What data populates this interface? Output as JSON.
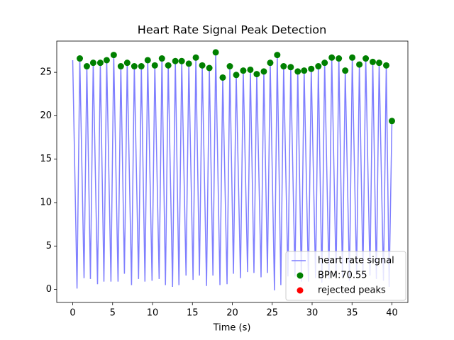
{
  "chart_data": {
    "type": "line",
    "title": "Heart Rate Signal Peak Detection",
    "xlabel": "Time (s)",
    "xlim": [
      -2,
      42
    ],
    "ylim": [
      -1.5,
      28.6
    ],
    "xticks": [
      0,
      5,
      10,
      15,
      20,
      25,
      30,
      35,
      40
    ],
    "yticks": [
      0,
      5,
      10,
      15,
      20,
      25
    ],
    "grid": false,
    "legend": "lower right",
    "series": [
      {
        "name": "heart rate signal",
        "type": "line",
        "color": "#7f7fff",
        "x": [
          0,
          0.54,
          0.89,
          1.42,
          1.77,
          2.22,
          2.57,
          3.11,
          3.46,
          3.91,
          4.26,
          4.79,
          5.14,
          5.68,
          6.03,
          6.48,
          6.83,
          7.37,
          7.72,
          8.25,
          8.6,
          9.05,
          9.4,
          9.94,
          10.29,
          10.83,
          11.18,
          11.62,
          11.97,
          12.51,
          12.86,
          13.31,
          13.66,
          14.2,
          14.55,
          15.08,
          15.43,
          15.88,
          16.23,
          16.77,
          17.12,
          17.57,
          17.92,
          18.45,
          18.8,
          19.34,
          19.69,
          20.14,
          20.49,
          21.02,
          21.37,
          21.91,
          22.26,
          22.71,
          23.06,
          23.6,
          23.95,
          24.4,
          24.75,
          25.28,
          25.63,
          26.08,
          26.43,
          26.97,
          27.32,
          27.85,
          28.2,
          28.65,
          29.0,
          29.54,
          29.89,
          30.43,
          30.78,
          31.22,
          31.57,
          32.11,
          32.46,
          33.0,
          33.35,
          33.8,
          34.15,
          34.68,
          35.03,
          35.57,
          35.92,
          36.37,
          36.72,
          37.25,
          37.6,
          38.05,
          38.4,
          38.94,
          39.29,
          39.65,
          40.0
        ],
        "y": [
          26.4,
          0.1,
          26.6,
          1.3,
          25.7,
          1.2,
          26.1,
          0.6,
          26.1,
          0.9,
          26.4,
          0.9,
          27.0,
          0.9,
          25.7,
          1.8,
          26.1,
          0.5,
          25.7,
          1.2,
          25.7,
          0.9,
          26.4,
          1.0,
          25.8,
          1.2,
          26.6,
          0.5,
          25.8,
          0.3,
          26.3,
          0.5,
          26.3,
          1.6,
          26.0,
          1.1,
          26.7,
          1.6,
          25.8,
          0.4,
          25.5,
          1.6,
          27.3,
          0.5,
          24.4,
          0.6,
          25.7,
          1.8,
          24.7,
          1.3,
          25.2,
          2.0,
          25.3,
          1.9,
          24.8,
          1.4,
          25.1,
          1.9,
          26.1,
          -0.1,
          27.0,
          0.5,
          25.7,
          1.5,
          25.6,
          1.5,
          25.1,
          0.9,
          25.2,
          0.9,
          25.4,
          1.3,
          25.7,
          0.8,
          26.1,
          1.2,
          26.7,
          1.5,
          26.6,
          1.4,
          25.2,
          1.0,
          26.7,
          1.7,
          25.9,
          1.6,
          26.6,
          1.6,
          26.2,
          1.2,
          26.1,
          1.0,
          25.8,
          0.3,
          19.4
        ]
      },
      {
        "name": "BPM:70.55",
        "type": "scatter",
        "color": "#008000",
        "x": [
          0.89,
          1.77,
          2.57,
          3.46,
          4.26,
          5.14,
          6.03,
          6.83,
          7.72,
          8.6,
          9.4,
          10.29,
          11.18,
          11.97,
          12.86,
          13.66,
          14.55,
          15.43,
          16.23,
          17.12,
          17.92,
          18.8,
          19.69,
          20.49,
          21.37,
          22.26,
          23.06,
          23.95,
          24.75,
          25.63,
          26.43,
          27.32,
          28.2,
          29.0,
          29.89,
          30.78,
          31.57,
          32.46,
          33.35,
          34.15,
          35.03,
          35.92,
          36.72,
          37.6,
          38.4,
          39.29,
          40.0
        ],
        "y": [
          26.6,
          25.7,
          26.1,
          26.1,
          26.4,
          27.0,
          25.7,
          26.1,
          25.7,
          25.7,
          26.4,
          25.8,
          26.6,
          25.8,
          26.3,
          26.3,
          26.0,
          26.7,
          25.8,
          25.5,
          27.3,
          24.4,
          25.7,
          24.7,
          25.2,
          25.3,
          24.8,
          25.1,
          26.1,
          27.0,
          25.7,
          25.6,
          25.1,
          25.2,
          25.4,
          25.7,
          26.1,
          26.7,
          26.6,
          25.2,
          26.7,
          25.9,
          26.6,
          26.2,
          26.1,
          25.8,
          19.4
        ]
      },
      {
        "name": "rejected peaks",
        "type": "scatter",
        "color": "#ff0000",
        "x": [],
        "y": []
      }
    ]
  }
}
